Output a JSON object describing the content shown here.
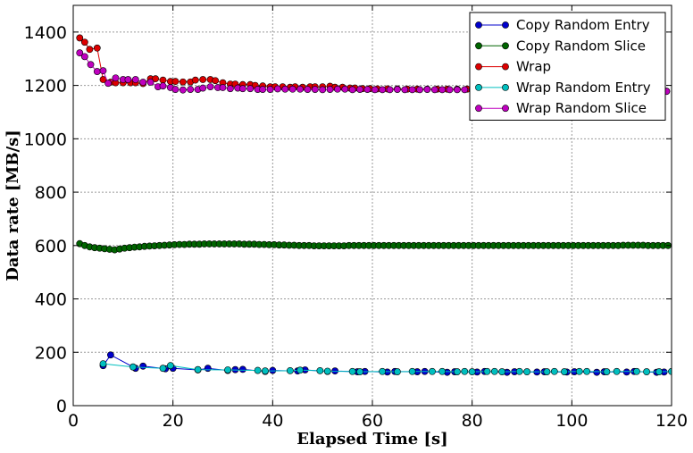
{
  "chart_data": {
    "type": "line",
    "title": "",
    "xlabel": "Elapsed Time [s]",
    "ylabel": "Data rate [MB/s]",
    "xlim": [
      0,
      120
    ],
    "ylim": [
      0,
      1500
    ],
    "xticks": [
      0,
      20,
      40,
      60,
      80,
      100,
      120
    ],
    "yticks": [
      0,
      200,
      400,
      600,
      800,
      1000,
      1200,
      1400
    ],
    "grid": true,
    "legend_position": "top-right",
    "series": [
      {
        "name": "Copy Random Entry",
        "color": "#0000cc",
        "x": [
          6,
          7.5,
          12.5,
          14,
          18.5,
          20,
          25,
          27,
          31,
          32.5,
          34,
          38.5,
          40,
          45,
          46.5,
          51,
          52.5,
          57,
          58.5,
          63,
          64.5,
          69,
          70.5,
          75,
          76.5,
          81,
          82.5,
          87,
          88.5,
          93,
          94.5,
          99,
          100.5,
          105,
          106.5,
          111,
          112.5,
          117,
          118.5
        ],
        "y": [
          150,
          190,
          140,
          148,
          138,
          140,
          134,
          140,
          132,
          135,
          136,
          128,
          132,
          130,
          134,
          128,
          130,
          127,
          128,
          126,
          128,
          127,
          128,
          125,
          127,
          126,
          128,
          125,
          127,
          126,
          127,
          126,
          127,
          125,
          127,
          126,
          128,
          125,
          126
        ]
      },
      {
        "name": "Copy Random Slice",
        "color": "#006400",
        "x": [
          1.3,
          2.3,
          3.3,
          4.3,
          5.3,
          6.3,
          7.3,
          8.3,
          9.3,
          10.3,
          11.3,
          12.3,
          13.3,
          14.3,
          15.3,
          16.3,
          17.3,
          18.3,
          19.3,
          20.3,
          21.3,
          22.3,
          23.3,
          24.3,
          25.3,
          26.3,
          27.3,
          28.3,
          29.3,
          30.3,
          31.3,
          32.3,
          33.3,
          34.3,
          35.3,
          36.3,
          37.3,
          38.3,
          39.3,
          40.3,
          41.3,
          42.3,
          43.3,
          44.3,
          45.3,
          46.3,
          47.3,
          48.3,
          49.3,
          50.3,
          51.3,
          52.3,
          53.3,
          54.3,
          55.3,
          56.3,
          57.3,
          58.3,
          59.3,
          60.3,
          61.3,
          62.3,
          63.3,
          64.3,
          65.3,
          66.3,
          67.3,
          68.3,
          69.3,
          70.3,
          71.3,
          72.3,
          73.3,
          74.3,
          75.3,
          76.3,
          77.3,
          78.3,
          79.3,
          80.3,
          81.3,
          82.3,
          83.3,
          84.3,
          85.3,
          86.3,
          87.3,
          88.3,
          89.3,
          90.3,
          91.3,
          92.3,
          93.3,
          94.3,
          95.3,
          96.3,
          97.3,
          98.3,
          99.3,
          100.3,
          101.3,
          102.3,
          103.3,
          104.3,
          105.3,
          106.3,
          107.3,
          108.3,
          109.3,
          110.3,
          111.3,
          112.3,
          113.3,
          114.3,
          115.3,
          116.3,
          117.3,
          118.3,
          119.3
        ],
        "y": [
          607,
          600,
          595,
          592,
          590,
          588,
          586,
          584,
          587,
          590,
          592,
          594,
          595,
          597,
          598,
          599,
          600,
          601,
          602,
          603,
          604,
          604,
          605,
          605,
          605,
          606,
          606,
          606,
          606,
          606,
          606,
          606,
          606,
          605,
          605,
          605,
          604,
          604,
          603,
          603,
          602,
          602,
          601,
          601,
          600,
          600,
          600,
          599,
          599,
          599,
          599,
          599,
          599,
          599,
          600,
          600,
          600,
          600,
          600,
          600,
          600,
          600,
          600,
          600,
          600,
          600,
          600,
          600,
          600,
          600,
          600,
          600,
          600,
          600,
          600,
          600,
          600,
          600,
          600,
          600,
          600,
          600,
          600,
          600,
          600,
          600,
          600,
          600,
          600,
          600,
          600,
          600,
          600,
          600,
          600,
          600,
          600,
          600,
          600,
          600,
          600,
          600,
          600,
          600,
          600,
          600,
          600,
          600,
          600,
          601,
          601,
          601,
          601,
          601,
          600,
          600,
          600,
          600,
          600
        ]
      },
      {
        "name": "Wrap",
        "color": "#dd0000",
        "x": [
          1.3,
          2.3,
          3.3,
          4.8,
          6,
          7.5,
          8.5,
          10,
          11.5,
          12.5,
          14,
          15.5,
          16.5,
          18,
          19.5,
          20.5,
          22,
          23.5,
          24.5,
          26,
          27.5,
          28.5,
          30,
          31.5,
          32.5,
          34,
          35.5,
          36.5,
          38,
          39.5,
          40.5,
          42,
          43.5,
          44.5,
          46,
          47.5,
          48.5,
          50,
          51.5,
          52.5,
          54,
          55.5,
          56.5,
          58,
          59.5,
          61,
          63,
          65,
          67,
          69,
          71,
          73,
          75,
          77,
          79,
          81,
          83,
          85,
          87,
          89,
          91,
          93,
          95,
          97,
          99,
          101,
          103,
          105,
          107,
          109,
          111,
          113,
          115,
          117,
          119
        ],
        "y": [
          1378,
          1362,
          1335,
          1340,
          1222,
          1212,
          1210,
          1210,
          1210,
          1210,
          1207,
          1225,
          1225,
          1220,
          1215,
          1215,
          1213,
          1213,
          1220,
          1222,
          1222,
          1218,
          1210,
          1205,
          1205,
          1203,
          1203,
          1200,
          1198,
          1195,
          1195,
          1195,
          1193,
          1195,
          1193,
          1195,
          1195,
          1195,
          1197,
          1193,
          1193,
          1190,
          1190,
          1188,
          1188,
          1187,
          1187,
          1187,
          1186,
          1186,
          1186,
          1186,
          1186,
          1186,
          1186,
          1186,
          1185,
          1185,
          1185,
          1185,
          1185,
          1185,
          1184,
          1184,
          1184,
          1184,
          1184,
          1184,
          1184,
          1183,
          1182,
          1181,
          1180,
          1179,
          1178
        ]
      },
      {
        "name": "Wrap Random Entry",
        "color": "#00bfbf",
        "x": [
          6,
          12,
          18,
          19.5,
          25,
          31,
          37,
          38.5,
          43.5,
          45.5,
          49.5,
          51,
          56,
          57.5,
          62,
          65,
          68,
          72,
          74,
          77,
          78.5,
          80,
          83,
          84.5,
          86,
          89.5,
          91,
          95,
          96.5,
          98.5,
          101.5,
          103,
          107,
          109,
          113,
          115,
          117.5,
          120
        ],
        "y": [
          157,
          145,
          140,
          150,
          135,
          134,
          132,
          130,
          131,
          133,
          131,
          129,
          128,
          127,
          128,
          127,
          128,
          128,
          128,
          127,
          128,
          127,
          128,
          128,
          127,
          128,
          127,
          127,
          128,
          127,
          128,
          128,
          127,
          128,
          128,
          127,
          127,
          128
        ]
      },
      {
        "name": "Wrap Random Slice",
        "color": "#bf00bf",
        "x": [
          1.3,
          2.3,
          3.5,
          4.8,
          6,
          7,
          8.5,
          10,
          11,
          12.5,
          14,
          15.5,
          17,
          18,
          19.5,
          20.5,
          22,
          23.5,
          25,
          26,
          27.5,
          29,
          30,
          31.5,
          33,
          34,
          35.5,
          37,
          38,
          39.5,
          41,
          42.5,
          44,
          45.5,
          47,
          48.5,
          50,
          51.5,
          53,
          54.5,
          56,
          57.5,
          59,
          60.5,
          62,
          63.5,
          65,
          66.5,
          68,
          69.5,
          71,
          72.5,
          74,
          75.5,
          77,
          78.5,
          80,
          81.5,
          83,
          84.5,
          86,
          87.5,
          89,
          90.5,
          92,
          93.5,
          95,
          96.5,
          98,
          99.5,
          101,
          102.5,
          104,
          105.5,
          107,
          108.5,
          110,
          111.5,
          113,
          114.5,
          116,
          117.5,
          119
        ],
        "y": [
          1322,
          1308,
          1278,
          1252,
          1255,
          1208,
          1228,
          1222,
          1222,
          1222,
          1212,
          1212,
          1195,
          1198,
          1192,
          1185,
          1183,
          1185,
          1185,
          1190,
          1195,
          1192,
          1192,
          1188,
          1190,
          1188,
          1188,
          1185,
          1185,
          1185,
          1187,
          1186,
          1186,
          1186,
          1185,
          1185,
          1184,
          1185,
          1186,
          1186,
          1184,
          1185,
          1185,
          1184,
          1184,
          1184,
          1185,
          1184,
          1184,
          1184,
          1185,
          1184,
          1184,
          1184,
          1184,
          1184,
          1184,
          1184,
          1184,
          1184,
          1184,
          1184,
          1184,
          1184,
          1184,
          1184,
          1184,
          1184,
          1184,
          1184,
          1184,
          1183,
          1183,
          1183,
          1183,
          1182,
          1182,
          1181,
          1181,
          1180,
          1180,
          1179,
          1178
        ]
      }
    ]
  }
}
